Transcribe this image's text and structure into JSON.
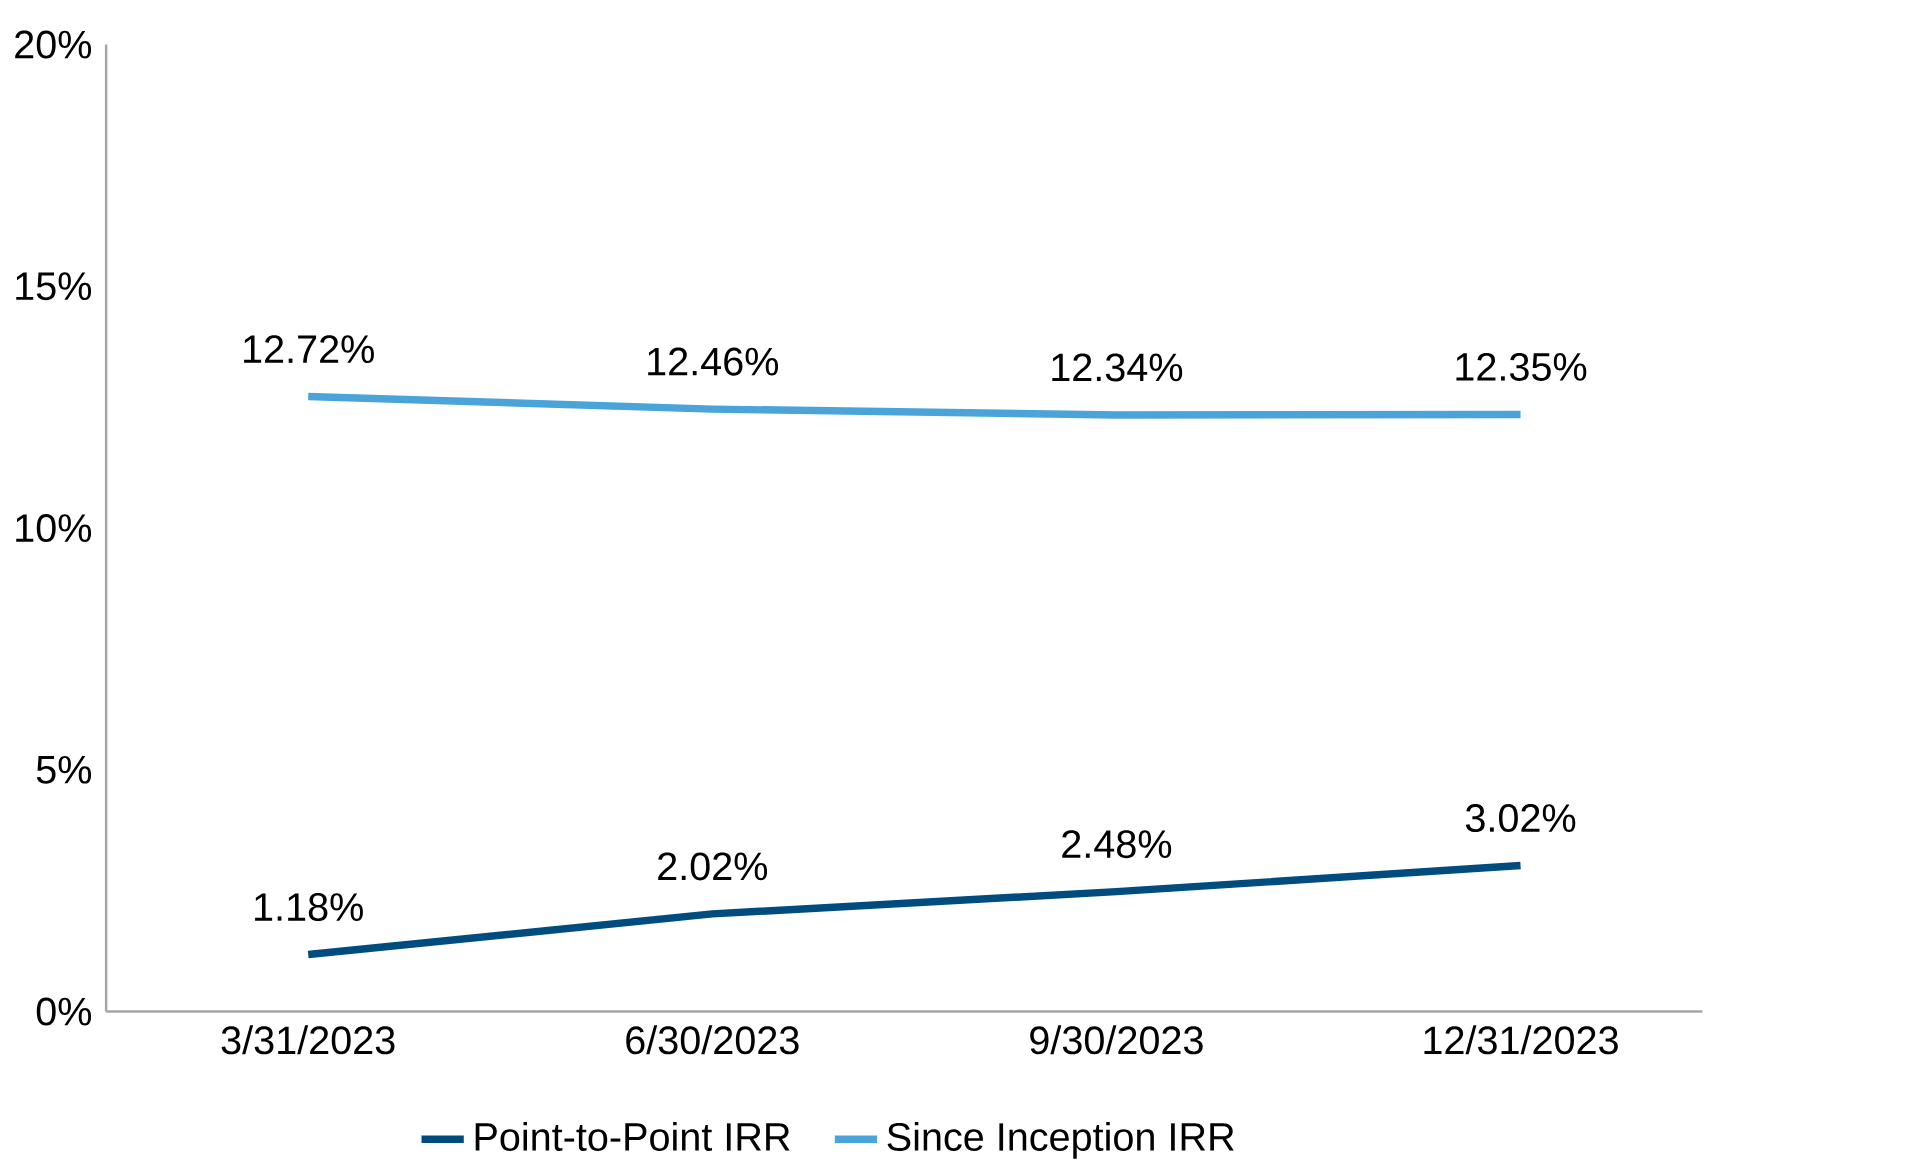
{
  "chart_data": {
    "type": "line",
    "categories": [
      "3/31/2023",
      "6/30/2023",
      "9/30/2023",
      "12/31/2023"
    ],
    "series": [
      {
        "name": "Point-to-Point IRR",
        "color": "#004c7e",
        "values": [
          1.18,
          2.02,
          2.48,
          3.02
        ],
        "value_labels": [
          "1.18%",
          "2.02%",
          "2.48%",
          "3.02%"
        ]
      },
      {
        "name": "Since Inception IRR",
        "color": "#4aa3d9",
        "values": [
          12.72,
          12.46,
          12.34,
          12.35
        ],
        "value_labels": [
          "12.72%",
          "12.46%",
          "12.34%",
          "12.35%"
        ]
      }
    ],
    "ylim": [
      0,
      20
    ],
    "yticks": [
      {
        "value": 0,
        "label": "0%"
      },
      {
        "value": 5,
        "label": "5%"
      },
      {
        "value": 10,
        "label": "10%"
      },
      {
        "value": 15,
        "label": "15%"
      },
      {
        "value": 20,
        "label": "20%"
      }
    ],
    "grid": false,
    "legend": "bottom"
  }
}
